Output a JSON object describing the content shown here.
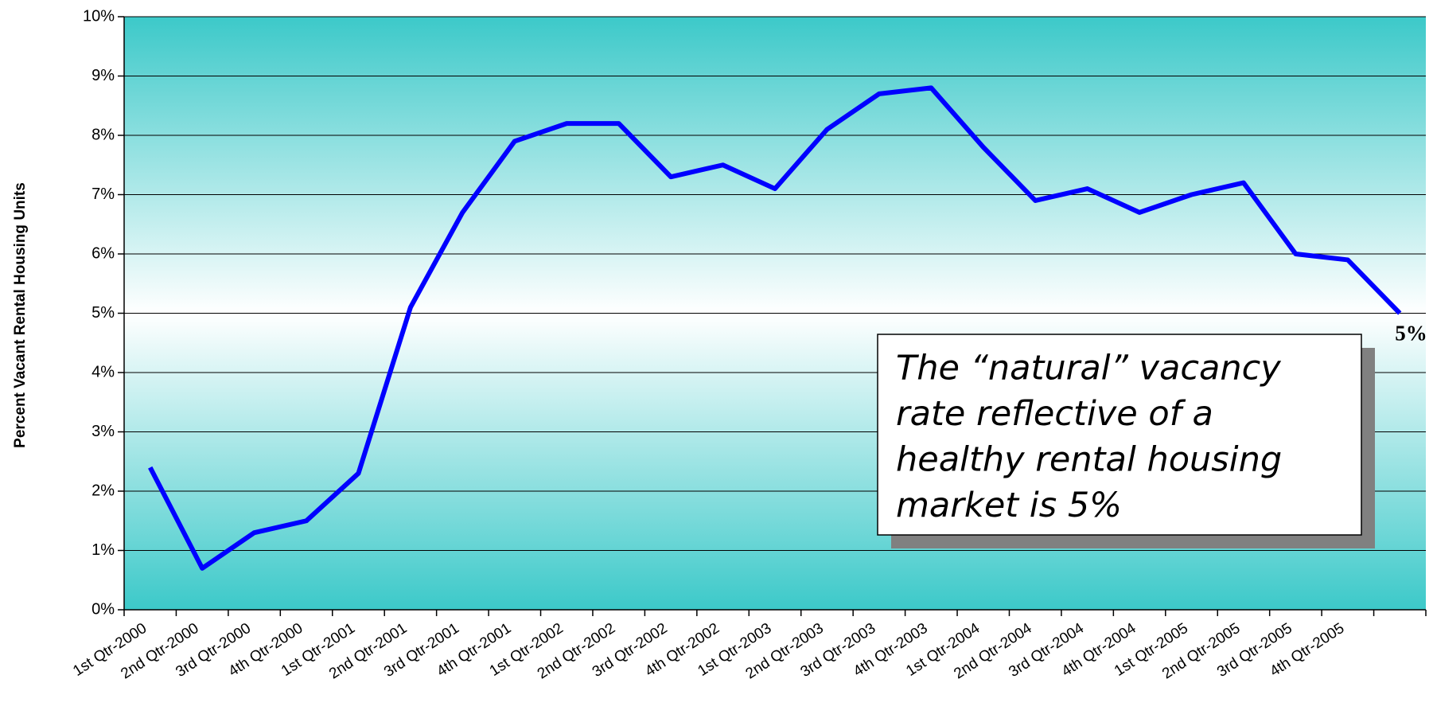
{
  "chart_data": {
    "type": "line",
    "y_axis_label": "Percent Vacant Rental Housing Units",
    "categories": [
      "1st Qtr-2000",
      "2nd Qtr-2000",
      "3rd Qtr-2000",
      "4th Qtr-2000",
      "1st Qtr-2001",
      "2nd Qtr-2001",
      "3rd Qtr-2001",
      "4th Qtr-2001",
      "1st Qtr-2002",
      "2nd Qtr-2002",
      "3rd Qtr-2002",
      "4th Qtr-2002",
      "1st Qtr-2003",
      "2nd Qtr-2003",
      "3rd Qtr-2003",
      "4th Qtr-2003",
      "1st Qtr-2004",
      "2nd Qtr-2004",
      "3rd Qtr-2004",
      "4th Qtr-2004",
      "1st Qtr-2005",
      "2nd Qtr-2005",
      "3rd Qtr-2005",
      "4th Qtr-2005",
      null
    ],
    "values": [
      2.4,
      0.7,
      1.3,
      1.5,
      2.3,
      5.1,
      6.7,
      7.9,
      8.2,
      8.2,
      7.3,
      7.5,
      7.1,
      8.1,
      8.7,
      8.8,
      7.8,
      6.9,
      7.1,
      6.7,
      7.0,
      7.2,
      6.0,
      5.9,
      5.0
    ],
    "value_labels": [
      null,
      null,
      null,
      null,
      null,
      null,
      null,
      null,
      null,
      null,
      null,
      null,
      null,
      null,
      null,
      null,
      null,
      null,
      null,
      null,
      null,
      null,
      null,
      null,
      "5%"
    ],
    "color": "#0000ff",
    "ylim": [
      0,
      10
    ],
    "yticks": [
      {
        "value": 0,
        "label": "0%"
      },
      {
        "value": 1,
        "label": "1%"
      },
      {
        "value": 2,
        "label": "2%"
      },
      {
        "value": 3,
        "label": "3%"
      },
      {
        "value": 4,
        "label": "4%"
      },
      {
        "value": 5,
        "label": "5%"
      },
      {
        "value": 6,
        "label": "6%"
      },
      {
        "value": 7,
        "label": "7%"
      },
      {
        "value": 8,
        "label": "8%"
      },
      {
        "value": 9,
        "label": "9%"
      },
      {
        "value": 10,
        "label": "10%"
      }
    ],
    "grid": true,
    "annotation_lines": [
      "The “natural” vacancy",
      "rate reflective of a",
      "healthy rental housing",
      "market is 5%"
    ]
  }
}
